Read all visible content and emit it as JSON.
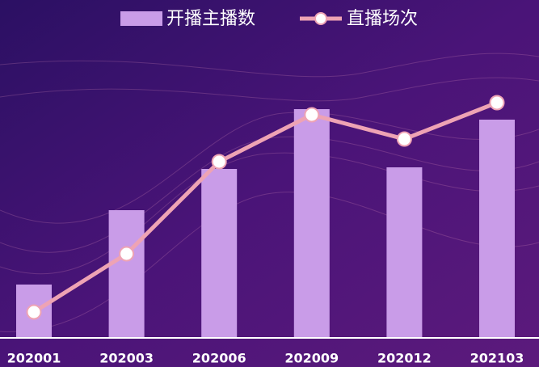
{
  "chart_data": {
    "type": "bar-line",
    "categories": [
      "202001",
      "202003",
      "202006",
      "202009",
      "202012",
      "202103"
    ],
    "series": [
      {
        "name": "开播主播数",
        "type": "bar",
        "color": "#c99ce8",
        "values": [
          66,
          158,
          209,
          283,
          211,
          270
        ]
      },
      {
        "name": "直播场次",
        "type": "line",
        "color": "#eea3b4",
        "values": [
          32,
          104,
          218,
          276,
          246,
          291
        ]
      }
    ],
    "ylim": [
      0,
      350
    ]
  }
}
